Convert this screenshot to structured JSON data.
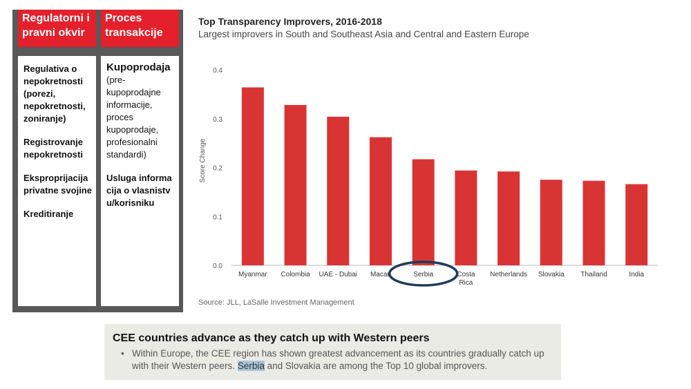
{
  "left_panel": {
    "columns": [
      {
        "header": [
          "Regulatorni i",
          "pravni okvir"
        ],
        "items": [
          "Regulativa o nepokretnosti (porezi, nepokretnosti, zoniranje)",
          "Registrovanje nepokretnosti",
          "Eksproprijacija privatne svojine",
          "Kreditiranje"
        ]
      },
      {
        "header": [
          "Proces",
          "transakcije"
        ],
        "title": "Kupoprodaja",
        "description": "(pre-kupoprodajne informacije, proces kupoprodaje, profesionalni standardi)",
        "item2": "Usluga informacija o vlasnistvu/korisniku"
      }
    ]
  },
  "chart_data": {
    "type": "bar",
    "title": "Top Transparency Improvers, 2016-2018",
    "subtitle": "Largest improvers in South and Southeast Asia and Central and Eastern Europe",
    "ylabel": "Score Change",
    "xlabel": "",
    "categories": [
      "Myanmar",
      "Colombia",
      "UAE - Dubai",
      "Macau",
      "Serbia",
      "Costa Rica",
      "Netherlands",
      "Slovakia",
      "Thailand",
      "India"
    ],
    "category_lines": [
      [
        "Myanmar"
      ],
      [
        "Colombia"
      ],
      [
        "UAE - Dubai"
      ],
      [
        "Macau"
      ],
      [
        "Serbia"
      ],
      [
        "Costa",
        "Rica"
      ],
      [
        "Netherlands"
      ],
      [
        "Slovakia"
      ],
      [
        "Thailand"
      ],
      [
        "India"
      ]
    ],
    "values": [
      0.364,
      0.328,
      0.304,
      0.262,
      0.217,
      0.194,
      0.192,
      0.175,
      0.173,
      0.166
    ],
    "ylim": [
      0,
      0.4
    ],
    "yticks": [
      "0.0",
      "0.1",
      "0.2",
      "0.3",
      "0.4"
    ],
    "grid": false,
    "bar_color": "#d93434",
    "highlighted_category": "Serbia",
    "highlight_color": "#1f3b5c",
    "source": "Source: JLL, LaSalle Investment Management"
  },
  "summary": {
    "title": "CEE countries advance as they catch up with Western peers",
    "bullet": "•",
    "text_before": "Within Europe, the CEE region has shown greatest advancement as its countries gradually catch up with their Western peers.  ",
    "highlight": "Serbia",
    "text_after": " and Slovakia are among the Top 10 global improvers."
  }
}
